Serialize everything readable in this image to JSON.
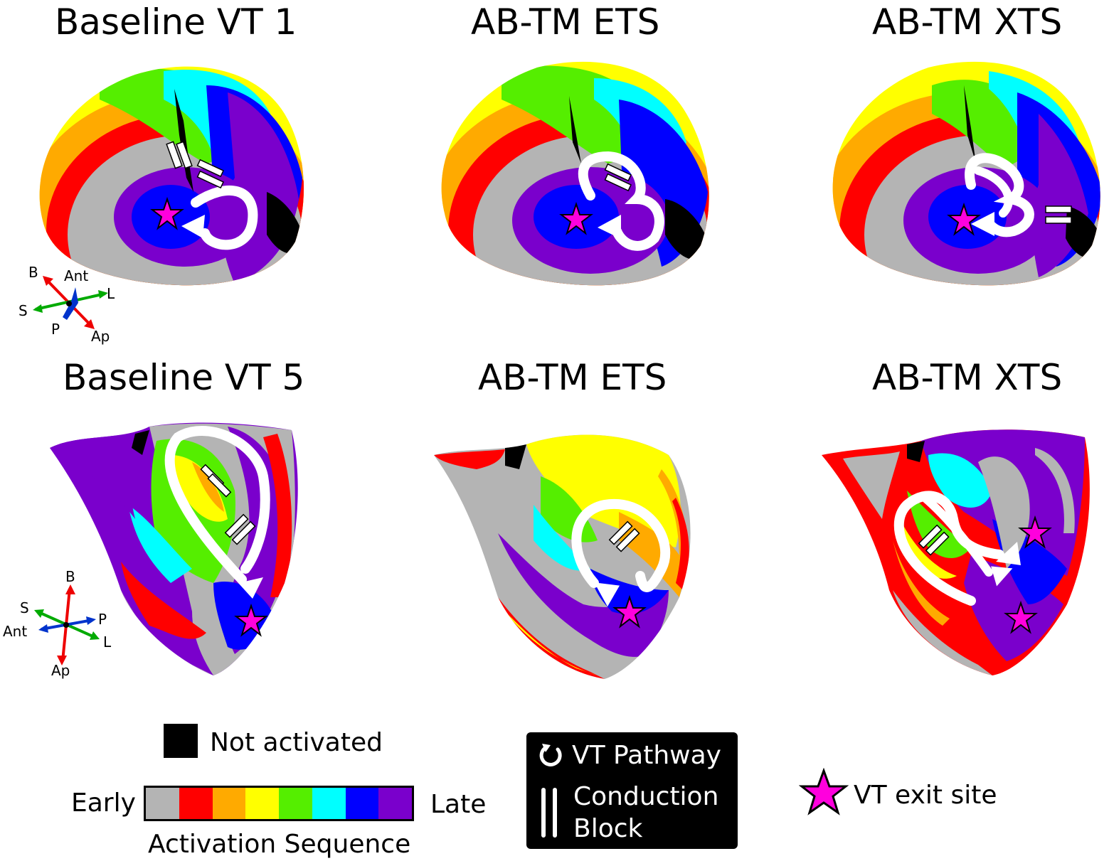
{
  "panels": {
    "top": [
      {
        "title": "Baseline VT 1"
      },
      {
        "title": "AB-TM ETS"
      },
      {
        "title": "AB-TM XTS"
      }
    ],
    "bottom": [
      {
        "title": "Baseline VT 5"
      },
      {
        "title": "AB-TM ETS"
      },
      {
        "title": "AB-TM XTS"
      }
    ]
  },
  "orientation_top": {
    "b": "B",
    "ant": "Ant",
    "l": "L",
    "s": "S",
    "p": "P",
    "ap": "Ap"
  },
  "orientation_bottom": {
    "b": "B",
    "s": "S",
    "p": "P",
    "ant": "Ant",
    "l": "L",
    "ap": "Ap"
  },
  "legend": {
    "not_activated": "Not activated",
    "early": "Early",
    "late": "Late",
    "sequence_title": "Activation Sequence",
    "colors": [
      "#b4b4b4",
      "#ff0000",
      "#ffaa00",
      "#ffff00",
      "#55ee00",
      "#00ffff",
      "#0000ff",
      "#7a00cc"
    ],
    "vt_pathway": "VT Pathway",
    "conduction_block_line1": "Conduction",
    "conduction_block_line2": "Block",
    "vt_exit_site": "VT exit site"
  },
  "icons": {
    "pathway": "circular-arrow-icon",
    "block": "double-bar-icon",
    "exit": "star-icon"
  }
}
